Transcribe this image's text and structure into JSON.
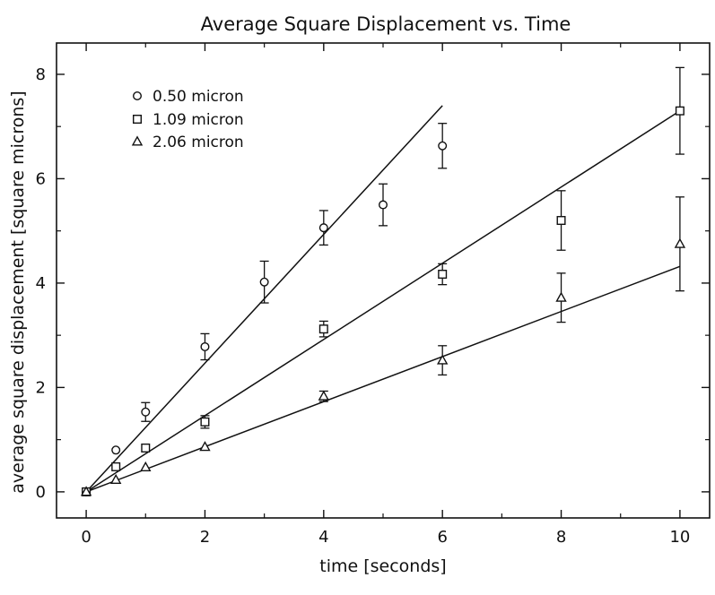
{
  "chart_data": {
    "type": "scatter",
    "title": "Average Square Displacement vs. Time",
    "xlabel": "time [seconds]",
    "ylabel": "average square displacement [square microns]",
    "xlim": [
      -0.5,
      10.5
    ],
    "ylim": [
      -0.5,
      8.6
    ],
    "xticks": [
      0,
      2,
      4,
      6,
      8,
      10
    ],
    "yticks": [
      0,
      2,
      4,
      6,
      8
    ],
    "grid": false,
    "legend_position": "top-left",
    "series": [
      {
        "name": "0.50 micron",
        "marker": "circle",
        "points": [
          {
            "x": 0,
            "y": 0,
            "err": 0
          },
          {
            "x": 0.5,
            "y": 0.8,
            "err": 0
          },
          {
            "x": 1,
            "y": 1.53,
            "err": 0.18
          },
          {
            "x": 2,
            "y": 2.78,
            "err": 0.25
          },
          {
            "x": 3,
            "y": 4.02,
            "err": 0.4
          },
          {
            "x": 4,
            "y": 5.06,
            "err": 0.33
          },
          {
            "x": 5,
            "y": 5.5,
            "err": 0.4
          },
          {
            "x": 6,
            "y": 6.63,
            "err": 0.43
          }
        ],
        "fit": [
          [
            0,
            0
          ],
          [
            6,
            7.4
          ]
        ]
      },
      {
        "name": "1.09 micron",
        "marker": "square",
        "points": [
          {
            "x": 0,
            "y": 0,
            "err": 0
          },
          {
            "x": 0.5,
            "y": 0.48,
            "err": 0
          },
          {
            "x": 1,
            "y": 0.84,
            "err": 0
          },
          {
            "x": 2,
            "y": 1.34,
            "err": 0.12
          },
          {
            "x": 4,
            "y": 3.12,
            "err": 0.15
          },
          {
            "x": 6,
            "y": 4.17,
            "err": 0.2
          },
          {
            "x": 8,
            "y": 5.2,
            "err": 0.57
          },
          {
            "x": 10,
            "y": 7.3,
            "err": 0.83
          }
        ],
        "fit": [
          [
            0,
            0
          ],
          [
            10,
            7.3
          ]
        ]
      },
      {
        "name": "2.06 micron",
        "marker": "triangle",
        "points": [
          {
            "x": 0,
            "y": 0,
            "err": 0
          },
          {
            "x": 0.5,
            "y": 0.23,
            "err": 0
          },
          {
            "x": 1,
            "y": 0.47,
            "err": 0
          },
          {
            "x": 2,
            "y": 0.86,
            "err": 0
          },
          {
            "x": 4,
            "y": 1.83,
            "err": 0.1
          },
          {
            "x": 6,
            "y": 2.52,
            "err": 0.28
          },
          {
            "x": 8,
            "y": 3.72,
            "err": 0.47
          },
          {
            "x": 10,
            "y": 4.75,
            "err": 0.9
          }
        ],
        "fit": [
          [
            0,
            0
          ],
          [
            10,
            4.32
          ]
        ]
      }
    ]
  }
}
